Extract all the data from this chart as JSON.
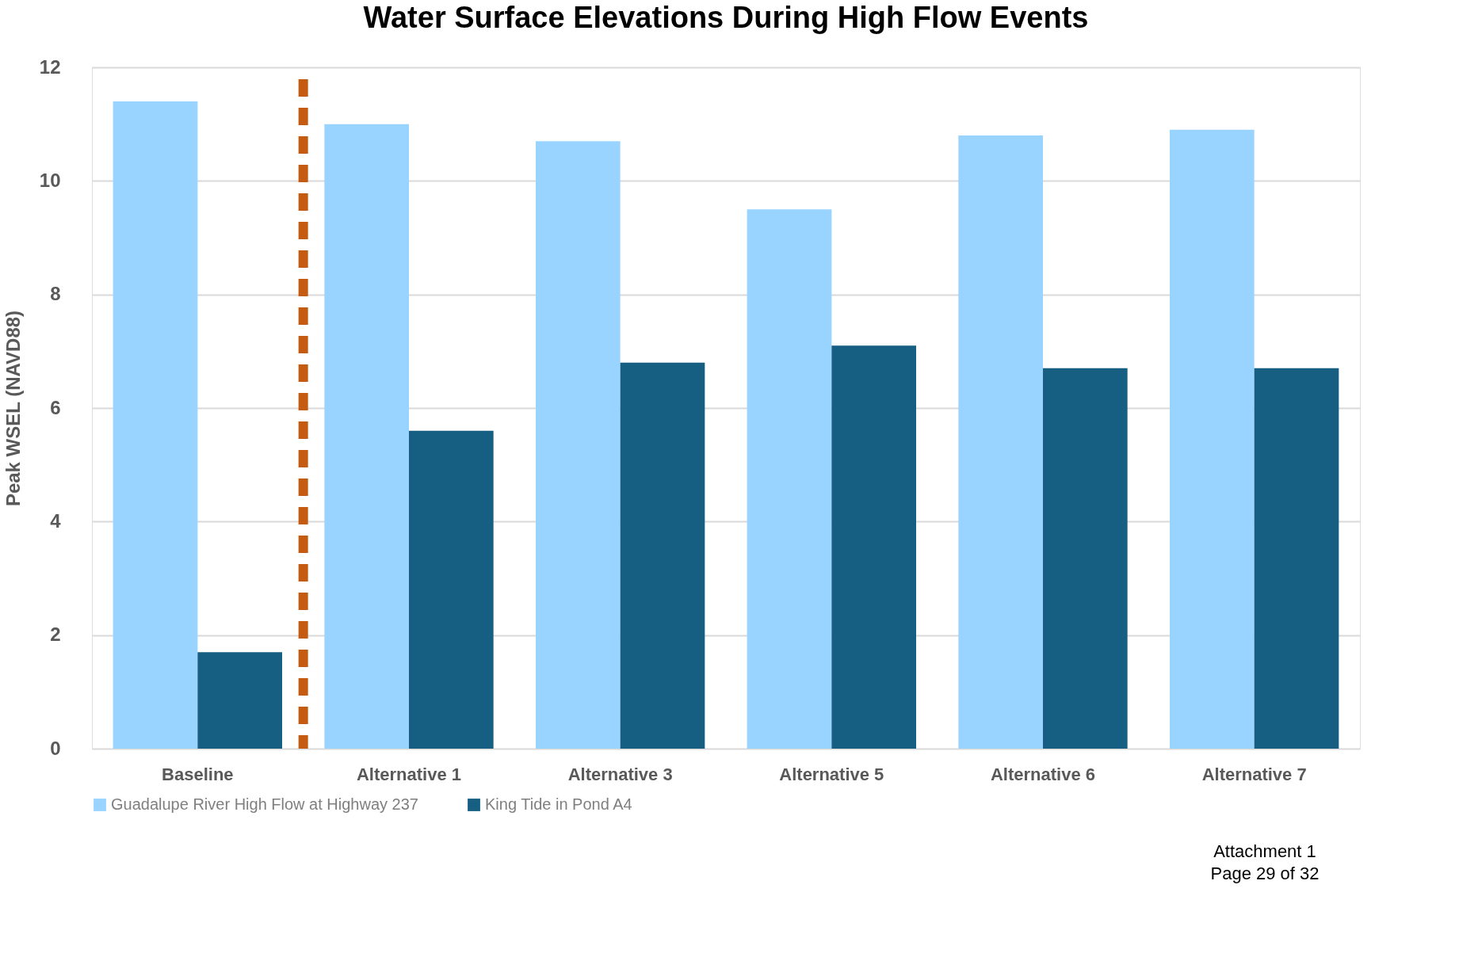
{
  "chart_data": {
    "type": "bar",
    "title": "Water Surface Elevations During High Flow Events",
    "ylabel": "Peak WSEL (NAVD88)",
    "categories": [
      "Baseline",
      "Alternative 1",
      "Alternative 3",
      "Alternative 5",
      "Alternative 6",
      "Alternative 7"
    ],
    "series": [
      {
        "name": "Guadalupe River High Flow at Highway 237",
        "color": "#99d3ff",
        "values": [
          11.4,
          11.0,
          10.7,
          9.5,
          10.8,
          10.9
        ]
      },
      {
        "name": "King Tide in Pond A4",
        "color": "#175f82",
        "values": [
          1.7,
          5.6,
          6.8,
          7.1,
          6.7,
          6.7
        ]
      }
    ],
    "ylim": [
      0,
      12
    ],
    "yticks": [
      0,
      2,
      4,
      6,
      8,
      10,
      12
    ],
    "ref_lines": [
      {
        "axis": "x",
        "value": "Baseline",
        "color": "#c55a11",
        "line_style": "dashed"
      }
    ],
    "grid": "y",
    "legend": "bottom",
    "annotations": [
      "Attachment 1",
      "Page 29 of 32"
    ]
  }
}
